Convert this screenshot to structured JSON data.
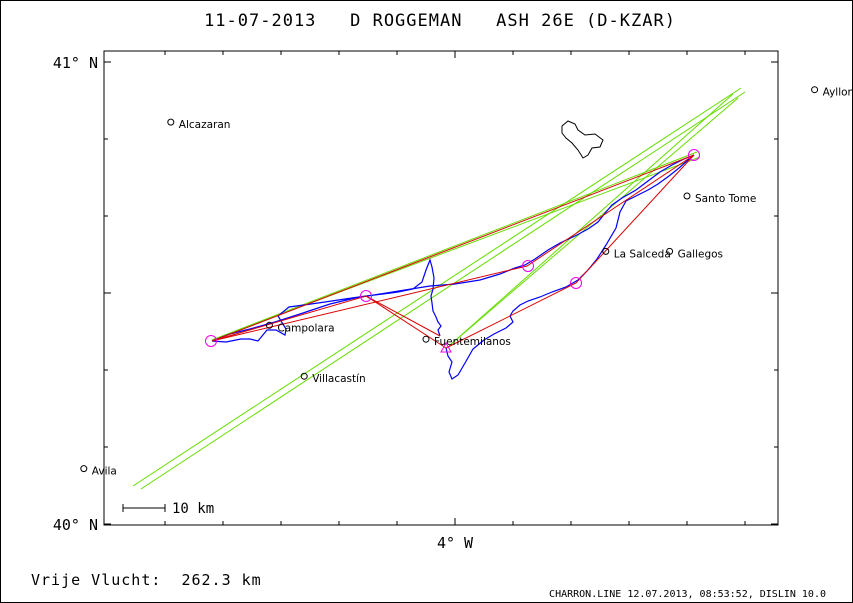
{
  "title": "11-07-2013   D ROGGEMAN   ASH 26E (D-KZAR)",
  "axes": {
    "lat_top": "41° N",
    "lat_bottom": "40° N",
    "lon_bottom": "4° W"
  },
  "places": [
    {
      "name": "Alcazaran",
      "lat": 40.87,
      "lon": -4.49
    },
    {
      "name": "Ayllon",
      "lat": 40.94,
      "lon": -3.38
    },
    {
      "name": "Santo Tome",
      "lat": 40.71,
      "lon": -3.6
    },
    {
      "name": "La Salceda",
      "lat": 40.59,
      "lon": -3.74
    },
    {
      "name": "Gallegos",
      "lat": 40.59,
      "lon": -3.63
    },
    {
      "name": "Campolara",
      "lat": 40.43,
      "lon": -4.32
    },
    {
      "name": "Fuentemilanos",
      "lat": 40.4,
      "lon": -4.05
    },
    {
      "name": "Villacastín",
      "lat": 40.32,
      "lon": -4.26
    },
    {
      "name": "Avila",
      "lat": 40.12,
      "lon": -4.64
    }
  ],
  "scale_bar": {
    "label": "10 km"
  },
  "distance_text": "Vrije Vlucht:  262.3 km",
  "footer": "CHARRON.LINE 12.07.2013, 08:53:52, DISLIN 10.0",
  "colors": {
    "track": "#0000ff",
    "task": "#dd0000",
    "sectors": "#66dd00",
    "turnpoints": "#ee00ee",
    "terrain": "#000000"
  }
}
